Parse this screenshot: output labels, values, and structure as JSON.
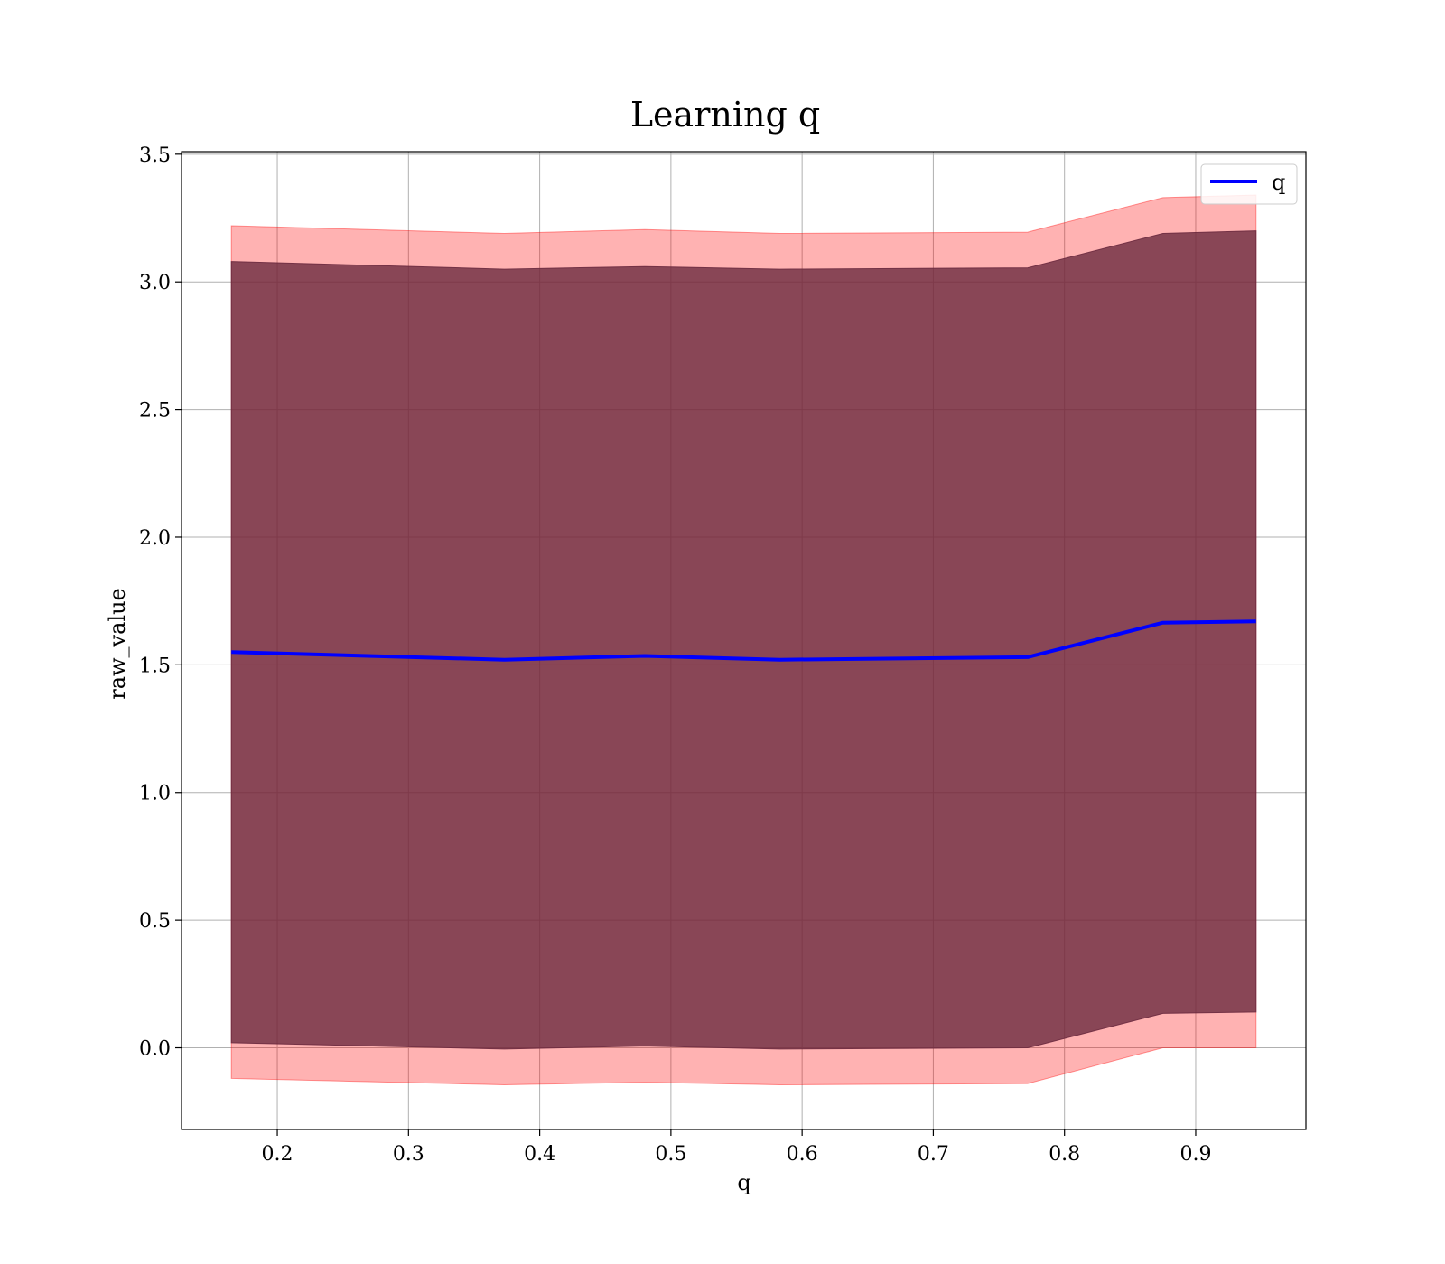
{
  "chart_data": {
    "type": "line",
    "title": "Learning q",
    "xlabel": "q",
    "ylabel": "raw_value",
    "xlim": [
      0.127,
      0.984
    ],
    "ylim": [
      -0.32,
      3.51
    ],
    "xticks": [
      "0.2",
      "0.3",
      "0.4",
      "0.5",
      "0.6",
      "0.7",
      "0.8",
      "0.9"
    ],
    "xtick_values": [
      0.2,
      0.3,
      0.4,
      0.5,
      0.6,
      0.7,
      0.8,
      0.9
    ],
    "yticks": [
      "0.0",
      "0.5",
      "1.0",
      "1.5",
      "2.0",
      "2.5",
      "3.0",
      "3.5"
    ],
    "ytick_values": [
      0.0,
      0.5,
      1.0,
      1.5,
      2.0,
      2.5,
      3.0,
      3.5
    ],
    "grid": true,
    "legend_position": "top-right",
    "x": [
      0.165,
      0.373,
      0.48,
      0.583,
      0.772,
      0.875,
      0.946
    ],
    "series": [
      {
        "name": "q",
        "values": [
          1.55,
          1.52,
          1.535,
          1.52,
          1.53,
          1.665,
          1.67
        ],
        "color": "#0000ff"
      }
    ],
    "bands": [
      {
        "lower": [
          -0.12,
          -0.145,
          -0.135,
          -0.145,
          -0.14,
          0.0,
          0.0
        ],
        "upper": [
          3.22,
          3.19,
          3.205,
          3.19,
          3.195,
          3.33,
          3.34
        ],
        "color": "#ff0000",
        "opacity": 0.3
      },
      {
        "lower": [
          0.02,
          -0.005,
          0.007,
          -0.005,
          0.0,
          0.135,
          0.14
        ],
        "upper": [
          3.08,
          3.05,
          3.06,
          3.05,
          3.055,
          3.19,
          3.2
        ],
        "color": "#6b2a3f",
        "opacity": 0.8
      }
    ]
  }
}
